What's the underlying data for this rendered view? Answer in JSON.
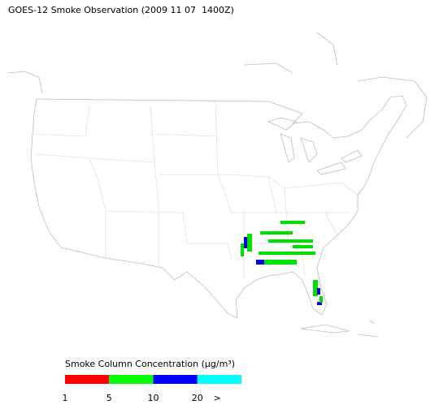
{
  "header": {
    "title": "GOES-12 Smoke Observation (2009 11 07  1400Z)"
  },
  "legend": {
    "title": "Smoke Column Concentration (μg/m³)",
    "colors": [
      "#ff0000",
      "#00ff00",
      "#0000ff",
      "#00ffff"
    ],
    "labels": [
      "1",
      "5",
      "10",
      "20",
      ">"
    ]
  }
}
